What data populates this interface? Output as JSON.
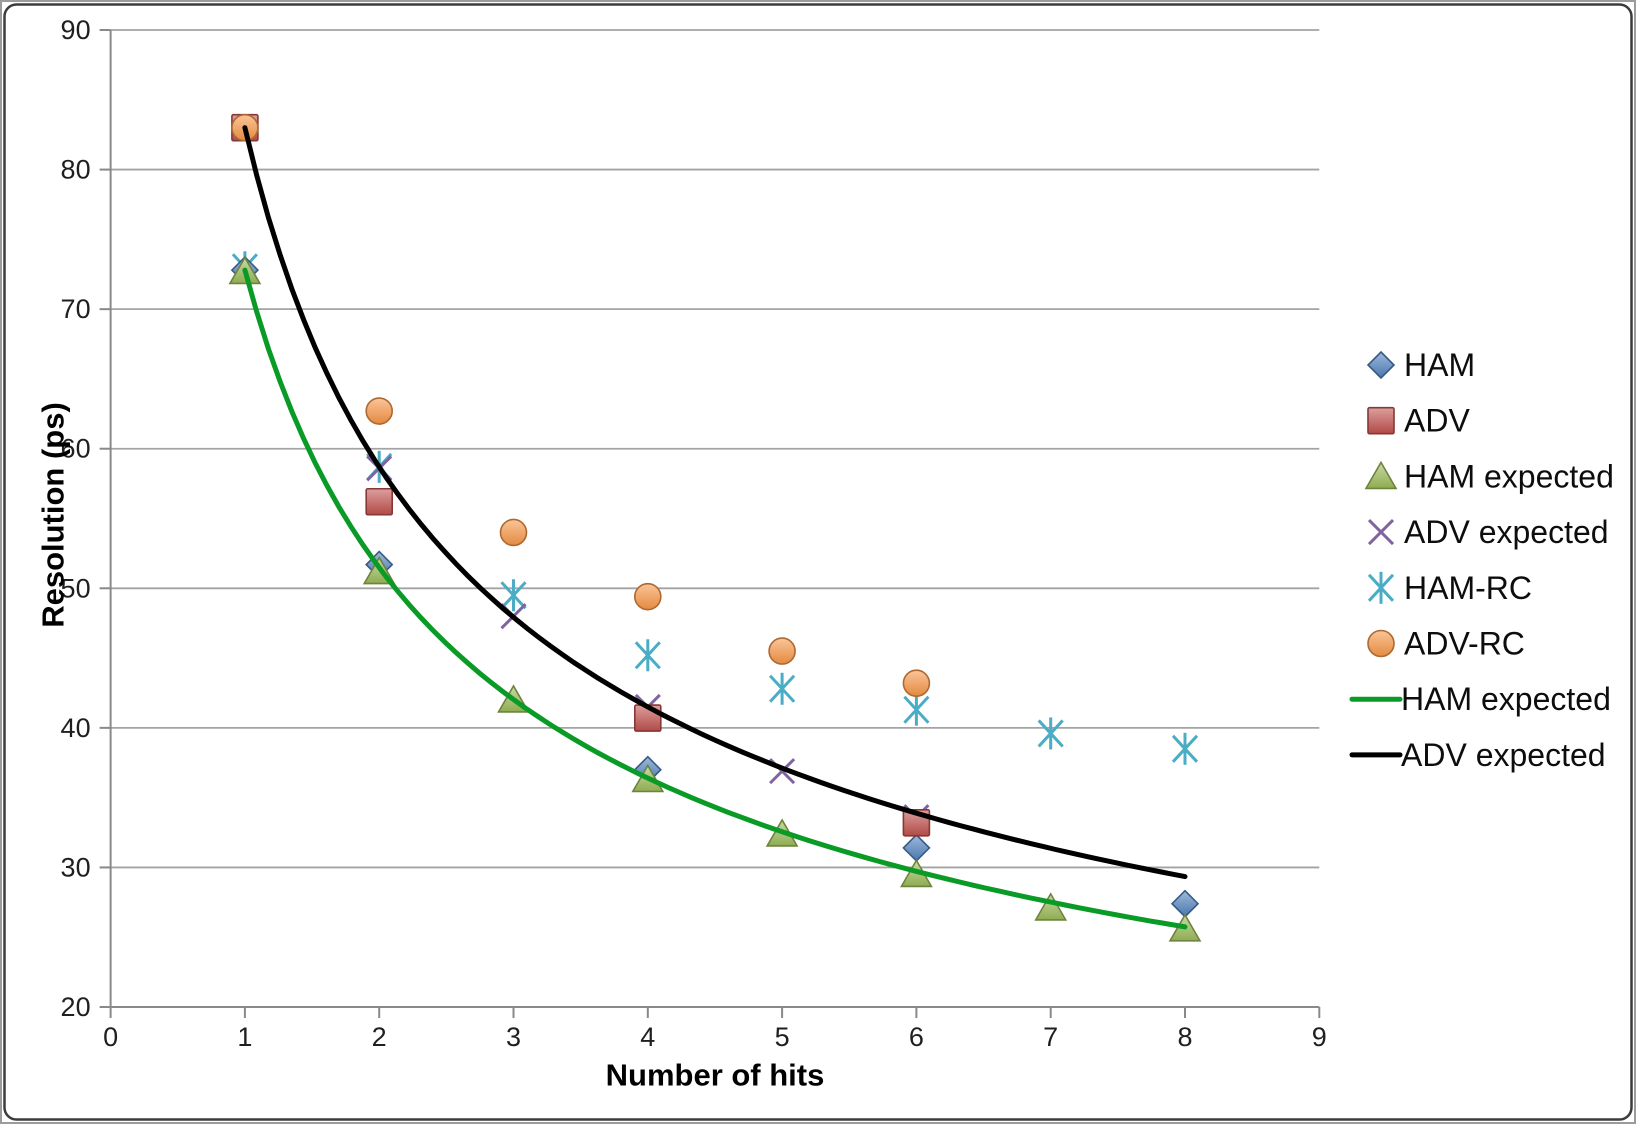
{
  "chart_data": {
    "type": "scatter",
    "title": "",
    "xlabel": "Number of hits",
    "ylabel": "Resolution (ps)",
    "xlim": [
      0,
      9
    ],
    "ylim": [
      20,
      90
    ],
    "x_ticks": [
      0,
      1,
      2,
      3,
      4,
      5,
      6,
      7,
      8,
      9
    ],
    "y_ticks": [
      20,
      30,
      40,
      50,
      60,
      70,
      80,
      90
    ],
    "grid": "horizontal",
    "legend_position": "right",
    "series": [
      {
        "name": "HAM",
        "marker": "diamond",
        "color": "#4F81BD",
        "points": [
          [
            1,
            72.8
          ],
          [
            2,
            51.7
          ],
          [
            4,
            37.0
          ],
          [
            6,
            31.4
          ],
          [
            8,
            27.4
          ]
        ]
      },
      {
        "name": "ADV",
        "marker": "square",
        "color": "#C0504D",
        "points": [
          [
            1,
            83.0
          ],
          [
            2,
            56.2
          ],
          [
            4,
            40.7
          ],
          [
            6,
            33.2
          ]
        ]
      },
      {
        "name": "HAM expected",
        "marker": "triangle",
        "color": "#9BBB59",
        "points": [
          [
            1,
            72.7
          ],
          [
            2,
            51.2
          ],
          [
            3,
            42.0
          ],
          [
            4,
            36.3
          ],
          [
            5,
            32.4
          ],
          [
            6,
            29.5
          ],
          [
            7,
            27.1
          ],
          [
            8,
            25.6
          ]
        ]
      },
      {
        "name": "ADV expected",
        "marker": "x",
        "color": "#8064A2",
        "points": [
          [
            1,
            83.0
          ],
          [
            2,
            58.6
          ],
          [
            3,
            48.0
          ],
          [
            4,
            41.5
          ],
          [
            5,
            36.9
          ],
          [
            6,
            33.6
          ]
        ]
      },
      {
        "name": "HAM-RC",
        "marker": "asterisk",
        "color": "#4BACC6",
        "points": [
          [
            1,
            73.0
          ],
          [
            2,
            58.7
          ],
          [
            3,
            49.5
          ],
          [
            4,
            45.2
          ],
          [
            5,
            42.8
          ],
          [
            6,
            41.3
          ],
          [
            7,
            39.6
          ],
          [
            8,
            38.5
          ]
        ]
      },
      {
        "name": "ADV-RC",
        "marker": "circle",
        "color": "#F79646",
        "points": [
          [
            1,
            83.0
          ],
          [
            2,
            62.7
          ],
          [
            3,
            54.0
          ],
          [
            4,
            49.4
          ],
          [
            5,
            45.5
          ],
          [
            6,
            43.2
          ]
        ]
      }
    ],
    "trendlines": [
      {
        "name": "HAM expected",
        "color": "#0A9B27",
        "power_a": 72.8,
        "power_b": -0.5,
        "x_range": [
          1,
          8
        ]
      },
      {
        "name": "ADV expected",
        "color": "#000000",
        "power_a": 83.0,
        "power_b": -0.5,
        "x_range": [
          1,
          8
        ]
      }
    ]
  }
}
